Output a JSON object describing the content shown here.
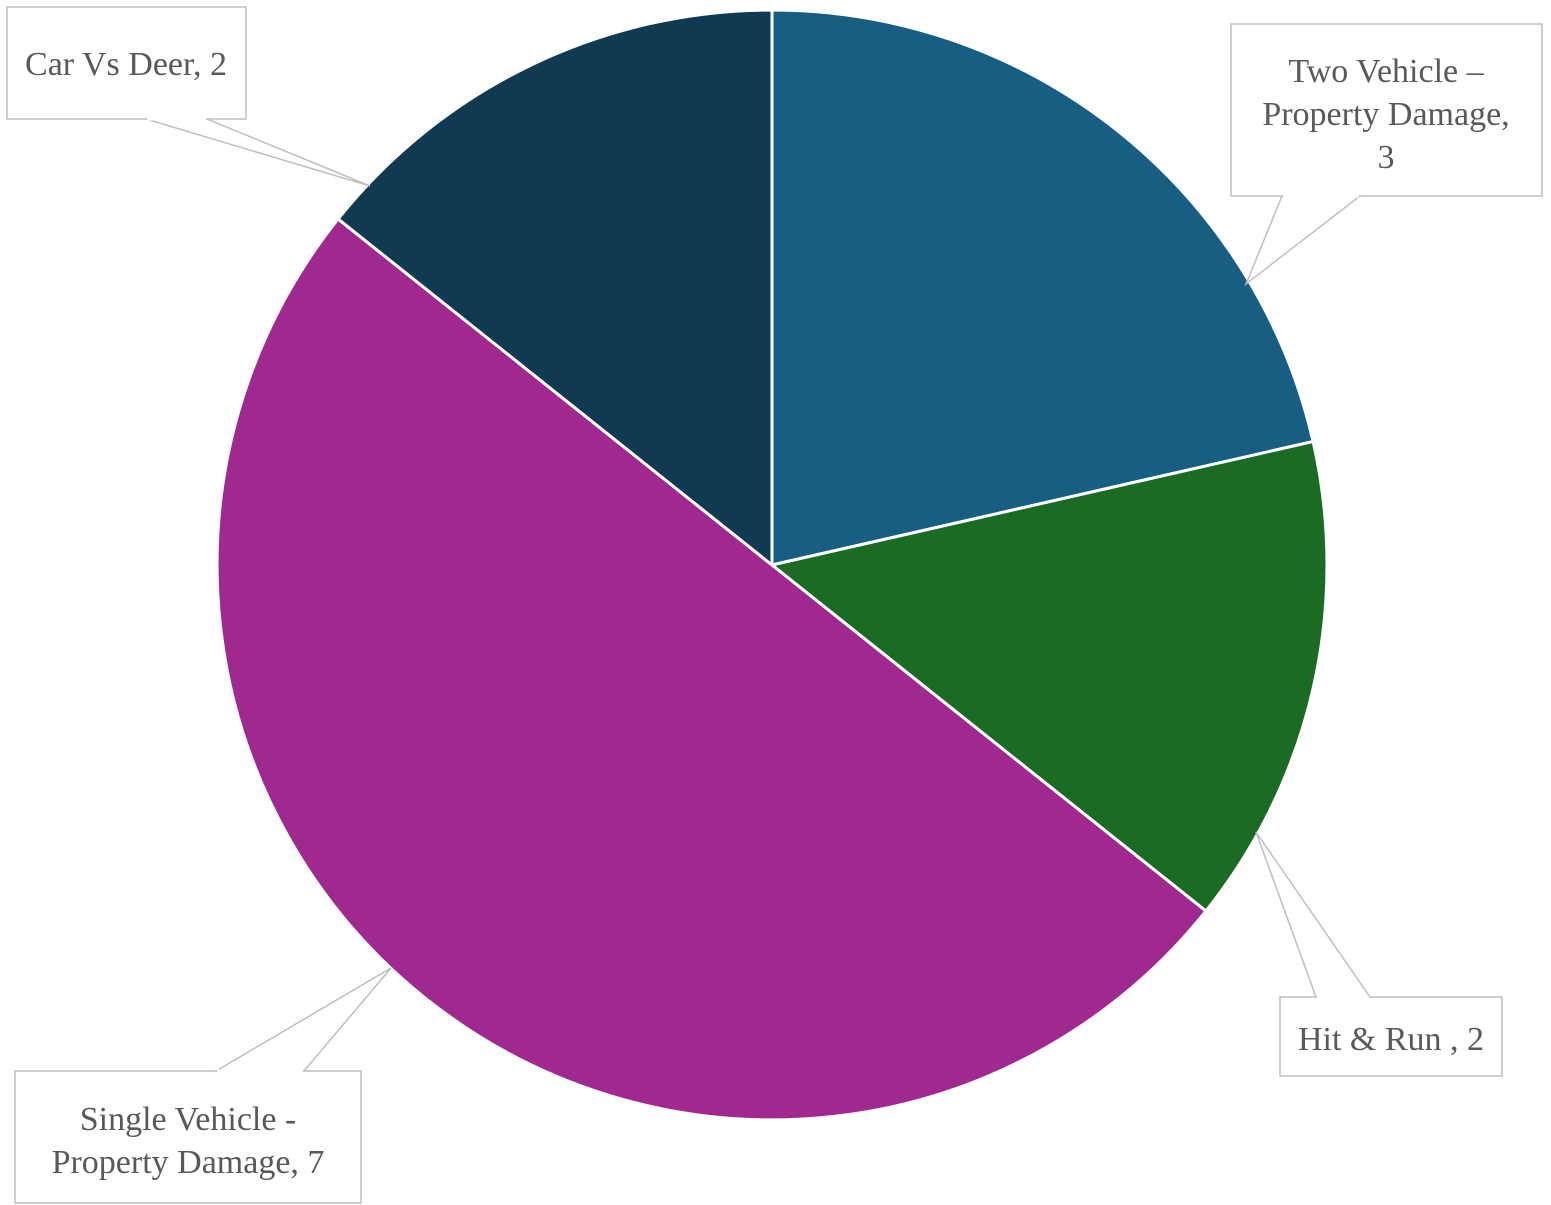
{
  "chart_data": {
    "type": "pie",
    "title": "",
    "start_angle_deg": 0,
    "direction": "clockwise",
    "slices": [
      {
        "label": "Two Vehicle – Property Damage",
        "value": 3,
        "color": "#185e82",
        "label_lines": [
          "Two Vehicle –",
          "Property Damage,",
          "3"
        ]
      },
      {
        "label": "Hit & Run ",
        "value": 2,
        "color": "#1c6b24",
        "label_lines": [
          "Hit & Run , 2"
        ]
      },
      {
        "label": "Single Vehicle - Property Damage",
        "value": 7,
        "color": "#a0298f",
        "label_lines": [
          "Single Vehicle -",
          "Property Damage, 7"
        ]
      },
      {
        "label": "Car Vs Deer",
        "value": 2,
        "color": "#0f3a51",
        "label_lines": [
          "Car Vs Deer, 2"
        ]
      }
    ],
    "data_labels": "callouts",
    "legend": "none"
  }
}
